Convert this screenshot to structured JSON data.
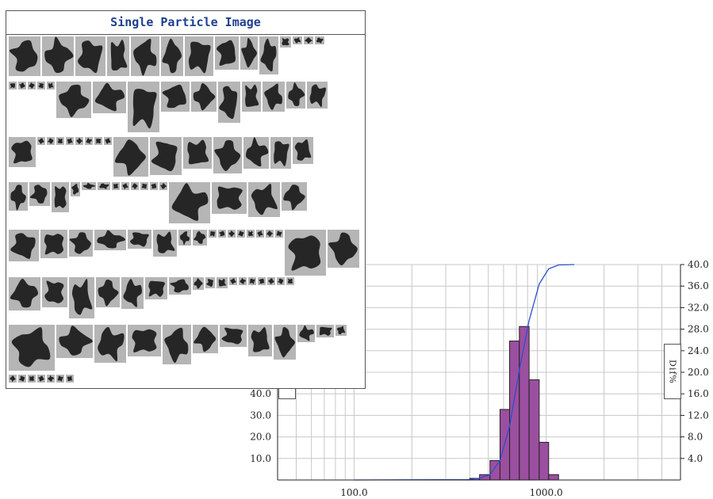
{
  "panel": {
    "title": "Single Particle Image"
  },
  "ylabel_right": "Dif%",
  "colors": {
    "bar": "#9b4fa0",
    "bar_edge": "#222222",
    "line": "#2b4fcf",
    "grid": "#c8c8c8",
    "title": "#1f3f8f",
    "particle": "#262626",
    "particle_bg": "#b5b5b5"
  },
  "chart_data": {
    "type": "bar",
    "x_scale": "log",
    "xlim": [
      40,
      5000
    ],
    "xticks": [
      "100.0",
      "1000.0"
    ],
    "right_axis": {
      "ylim": [
        0,
        40
      ],
      "ticks": [
        "40.0",
        "36.0",
        "32.0",
        "28.0",
        "24.0",
        "20.0",
        "16.0",
        "12.0",
        "8.0",
        "4.0"
      ]
    },
    "left_axis": {
      "ylim": [
        0,
        100
      ],
      "ticks": [
        "40.0",
        "30.0",
        "20.0",
        "10.0"
      ]
    },
    "grid": true,
    "series": [
      {
        "type": "bar",
        "axis": "right",
        "bins": [
          {
            "x0": 400,
            "x1": 450,
            "value": 0.3
          },
          {
            "x0": 450,
            "x1": 510,
            "value": 1.0
          },
          {
            "x0": 510,
            "x1": 575,
            "value": 3.6
          },
          {
            "x0": 575,
            "x1": 645,
            "value": 13.1
          },
          {
            "x0": 645,
            "x1": 725,
            "value": 25.8
          },
          {
            "x0": 725,
            "x1": 815,
            "value": 28.5
          },
          {
            "x0": 815,
            "x1": 920,
            "value": 18.6
          },
          {
            "x0": 920,
            "x1": 1030,
            "value": 7.0
          },
          {
            "x0": 1030,
            "x1": 1160,
            "value": 1.0
          }
        ]
      },
      {
        "type": "line",
        "axis": "left",
        "x": [
          100,
          400,
          450,
          510,
          575,
          645,
          725,
          815,
          920,
          1030,
          1160,
          1400
        ],
        "values": [
          0,
          0.2,
          0.8,
          2.5,
          9.0,
          25.0,
          51.0,
          74.0,
          91.0,
          98.0,
          99.8,
          100
        ]
      }
    ]
  },
  "particles": {
    "rows": [
      [
        {
          "w": 40,
          "h": 50,
          "v": 0
        },
        {
          "w": 40,
          "h": 50,
          "v": 1
        },
        {
          "w": 38,
          "h": 50,
          "v": 2
        },
        {
          "w": 28,
          "h": 50,
          "v": 3
        },
        {
          "w": 36,
          "h": 50,
          "v": 4
        },
        {
          "w": 28,
          "h": 50,
          "v": 5
        },
        {
          "w": 36,
          "h": 50,
          "v": 6
        },
        {
          "w": 30,
          "h": 42,
          "v": 7
        },
        {
          "w": 22,
          "h": 42,
          "v": 8
        },
        {
          "w": 24,
          "h": 48,
          "v": 9
        },
        {
          "w": 14,
          "h": 14,
          "v": 10
        },
        {
          "w": 12,
          "h": 10,
          "v": 11
        },
        {
          "w": 12,
          "h": 10,
          "v": 12
        },
        {
          "w": 12,
          "h": 10,
          "v": 13
        }
      ],
      [
        {
          "w": 10,
          "h": 10,
          "v": 14
        },
        {
          "w": 10,
          "h": 10,
          "v": 15
        },
        {
          "w": 10,
          "h": 10,
          "v": 16
        },
        {
          "w": 10,
          "h": 10,
          "v": 17
        },
        {
          "w": 10,
          "h": 10,
          "v": 18
        },
        {
          "w": 44,
          "h": 46,
          "v": 19
        },
        {
          "w": 42,
          "h": 40,
          "v": 20
        },
        {
          "w": 40,
          "h": 64,
          "v": 21
        },
        {
          "w": 36,
          "h": 38,
          "v": 22
        },
        {
          "w": 32,
          "h": 38,
          "v": 23
        },
        {
          "w": 28,
          "h": 52,
          "v": 24
        },
        {
          "w": 24,
          "h": 38,
          "v": 25
        },
        {
          "w": 28,
          "h": 38,
          "v": 26
        },
        {
          "w": 24,
          "h": 34,
          "v": 27
        },
        {
          "w": 26,
          "h": 34,
          "v": 28
        }
      ],
      [
        {
          "w": 34,
          "h": 38,
          "v": 29
        },
        {
          "w": 10,
          "h": 10,
          "v": 30
        },
        {
          "w": 10,
          "h": 10,
          "v": 31
        },
        {
          "w": 10,
          "h": 10,
          "v": 32
        },
        {
          "w": 10,
          "h": 10,
          "v": 33
        },
        {
          "w": 10,
          "h": 10,
          "v": 34
        },
        {
          "w": 10,
          "h": 10,
          "v": 35
        },
        {
          "w": 10,
          "h": 10,
          "v": 36
        },
        {
          "w": 10,
          "h": 10,
          "v": 37
        },
        {
          "w": 44,
          "h": 50,
          "v": 38
        },
        {
          "w": 40,
          "h": 48,
          "v": 39
        },
        {
          "w": 36,
          "h": 40,
          "v": 40
        },
        {
          "w": 36,
          "h": 46,
          "v": 41
        },
        {
          "w": 32,
          "h": 40,
          "v": 42
        },
        {
          "w": 26,
          "h": 40,
          "v": 43
        },
        {
          "w": 26,
          "h": 34,
          "v": 44
        }
      ],
      [
        {
          "w": 24,
          "h": 36,
          "v": 45
        },
        {
          "w": 26,
          "h": 30,
          "v": 46
        },
        {
          "w": 22,
          "h": 38,
          "v": 47
        },
        {
          "w": 12,
          "h": 18,
          "v": 48
        },
        {
          "w": 18,
          "h": 10,
          "v": 49
        },
        {
          "w": 16,
          "h": 10,
          "v": 50
        },
        {
          "w": 10,
          "h": 10,
          "v": 51
        },
        {
          "w": 10,
          "h": 10,
          "v": 52
        },
        {
          "w": 10,
          "h": 10,
          "v": 53
        },
        {
          "w": 10,
          "h": 10,
          "v": 54
        },
        {
          "w": 10,
          "h": 10,
          "v": 55
        },
        {
          "w": 10,
          "h": 10,
          "v": 56
        },
        {
          "w": 52,
          "h": 52,
          "v": 57
        },
        {
          "w": 44,
          "h": 40,
          "v": 58
        },
        {
          "w": 40,
          "h": 44,
          "v": 59
        },
        {
          "w": 32,
          "h": 36,
          "v": 60
        }
      ],
      [
        {
          "w": 38,
          "h": 40,
          "v": 61
        },
        {
          "w": 34,
          "h": 36,
          "v": 62
        },
        {
          "w": 30,
          "h": 34,
          "v": 63
        },
        {
          "w": 40,
          "h": 26,
          "v": 64
        },
        {
          "w": 30,
          "h": 24,
          "v": 65
        },
        {
          "w": 30,
          "h": 34,
          "v": 66
        },
        {
          "w": 16,
          "h": 20,
          "v": 67
        },
        {
          "w": 18,
          "h": 20,
          "v": 68
        },
        {
          "w": 10,
          "h": 10,
          "v": 69
        },
        {
          "w": 10,
          "h": 10,
          "v": 70
        },
        {
          "w": 10,
          "h": 10,
          "v": 71
        },
        {
          "w": 10,
          "h": 10,
          "v": 72
        },
        {
          "w": 10,
          "h": 10,
          "v": 73
        },
        {
          "w": 10,
          "h": 10,
          "v": 74
        },
        {
          "w": 10,
          "h": 10,
          "v": 75
        },
        {
          "w": 10,
          "h": 10,
          "v": 76
        },
        {
          "w": 52,
          "h": 58,
          "v": 77
        },
        {
          "w": 40,
          "h": 48,
          "v": 78
        }
      ],
      [
        {
          "w": 40,
          "h": 42,
          "v": 79
        },
        {
          "w": 32,
          "h": 38,
          "v": 80
        },
        {
          "w": 32,
          "h": 52,
          "v": 81
        },
        {
          "w": 30,
          "h": 38,
          "v": 82
        },
        {
          "w": 28,
          "h": 40,
          "v": 83
        },
        {
          "w": 28,
          "h": 28,
          "v": 84
        },
        {
          "w": 28,
          "h": 22,
          "v": 85
        },
        {
          "w": 14,
          "h": 16,
          "v": 86
        },
        {
          "w": 12,
          "h": 14,
          "v": 87
        },
        {
          "w": 14,
          "h": 14,
          "v": 88
        },
        {
          "w": 10,
          "h": 10,
          "v": 89
        },
        {
          "w": 10,
          "h": 10,
          "v": 90
        },
        {
          "w": 10,
          "h": 10,
          "v": 91
        },
        {
          "w": 10,
          "h": 10,
          "v": 92
        },
        {
          "w": 10,
          "h": 10,
          "v": 93
        },
        {
          "w": 10,
          "h": 10,
          "v": 94
        },
        {
          "w": 10,
          "h": 10,
          "v": 95
        }
      ],
      [
        {
          "w": 58,
          "h": 58,
          "v": 96
        },
        {
          "w": 46,
          "h": 42,
          "v": 97
        },
        {
          "w": 40,
          "h": 48,
          "v": 98
        },
        {
          "w": 42,
          "h": 40,
          "v": 99
        },
        {
          "w": 36,
          "h": 50,
          "v": 100
        },
        {
          "w": 32,
          "h": 36,
          "v": 101
        },
        {
          "w": 34,
          "h": 28,
          "v": 102
        },
        {
          "w": 30,
          "h": 40,
          "v": 103
        },
        {
          "w": 28,
          "h": 44,
          "v": 104
        },
        {
          "w": 22,
          "h": 22,
          "v": 105
        },
        {
          "w": 22,
          "h": 16,
          "v": 106
        },
        {
          "w": 14,
          "h": 14,
          "v": 107
        }
      ],
      [
        {
          "w": 10,
          "h": 10,
          "v": 108
        },
        {
          "w": 10,
          "h": 10,
          "v": 109
        },
        {
          "w": 10,
          "h": 10,
          "v": 110
        },
        {
          "w": 10,
          "h": 10,
          "v": 111
        },
        {
          "w": 10,
          "h": 10,
          "v": 112
        },
        {
          "w": 10,
          "h": 10,
          "v": 113
        },
        {
          "w": 10,
          "h": 10,
          "v": 114
        }
      ]
    ]
  }
}
